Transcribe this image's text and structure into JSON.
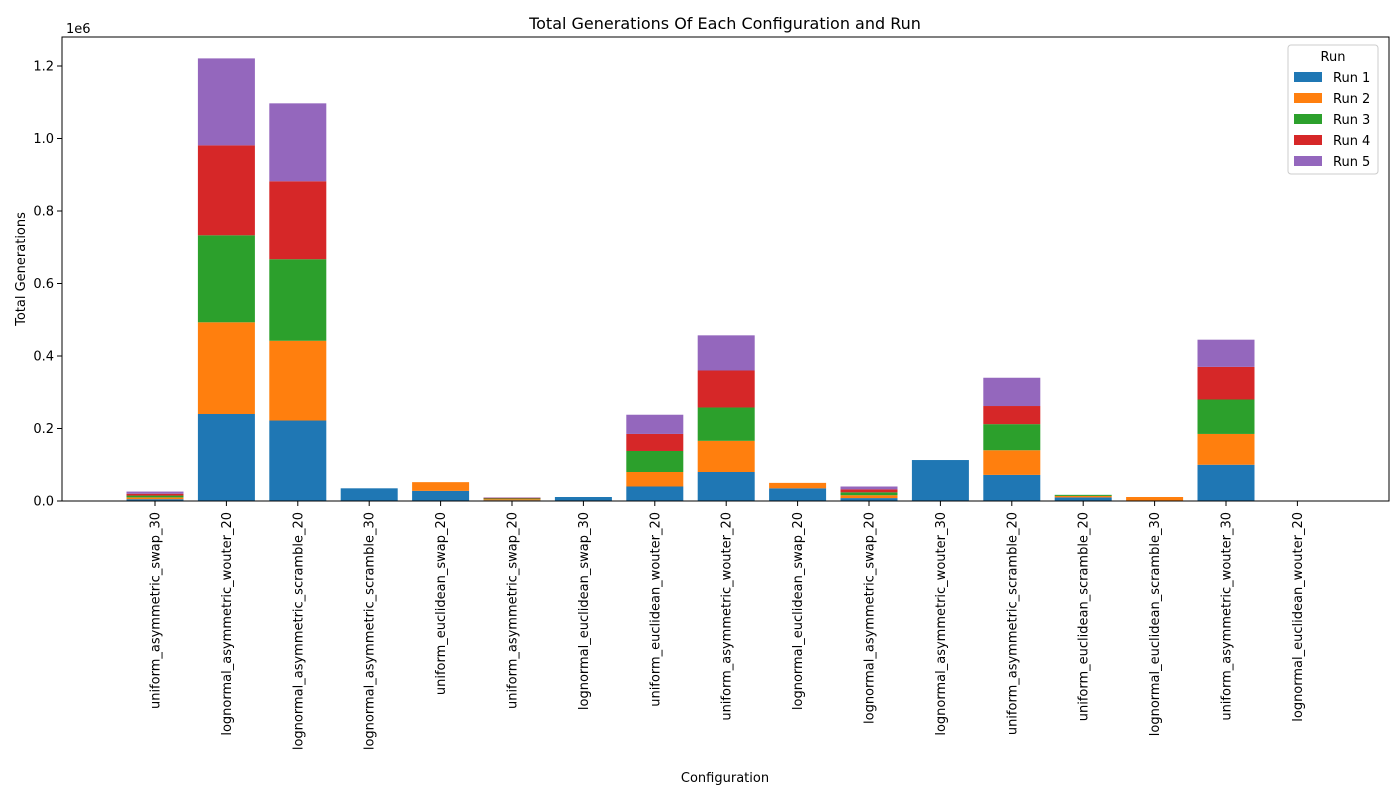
{
  "chart_data": {
    "type": "bar",
    "stacked": true,
    "title": "Total Generations Of Each Configuration and Run",
    "xlabel": "Configuration",
    "ylabel": "Total Generations",
    "y_offset_label": "1e6",
    "ylim": [
      0,
      1.28
    ],
    "y_scale": "1e6",
    "yticks": [
      0.0,
      0.2,
      0.4,
      0.6,
      0.8,
      1.0,
      1.2
    ],
    "ytick_labels": [
      "0.0",
      "0.2",
      "0.4",
      "0.6",
      "0.8",
      "1.0",
      "1.2"
    ],
    "legend": {
      "title": "Run",
      "placement": "top-right"
    },
    "categories": [
      "uniform_asymmetric_swap_30",
      "lognormal_asymmetric_wouter_20",
      "lognormal_asymmetric_scramble_20",
      "lognormal_asymmetric_scramble_30",
      "uniform_euclidean_swap_20",
      "uniform_asymmetric_swap_20",
      "lognormal_euclidean_swap_30",
      "uniform_euclidean_wouter_20",
      "uniform_asymmetric_wouter_20",
      "lognormal_euclidean_swap_20",
      "lognormal_asymmetric_swap_20",
      "lognormal_asymmetric_wouter_30",
      "uniform_asymmetric_scramble_20",
      "uniform_euclidean_scramble_20",
      "lognormal_euclidean_scramble_30",
      "uniform_asymmetric_wouter_30",
      "lognormal_euclidean_wouter_20"
    ],
    "series": [
      {
        "name": "Run 1",
        "color": "#1f77b4",
        "values": [
          0.005,
          0.24,
          0.222,
          0.035,
          0.028,
          0.002,
          0.011,
          0.04,
          0.08,
          0.035,
          0.008,
          0.113,
          0.072,
          0.01,
          0.001,
          0.1,
          0.0
        ]
      },
      {
        "name": "Run 2",
        "color": "#ff7f0e",
        "values": [
          0.005,
          0.253,
          0.22,
          0.0,
          0.024,
          0.003,
          0.0,
          0.04,
          0.086,
          0.015,
          0.008,
          0.0,
          0.068,
          0.004,
          0.01,
          0.085,
          0.0
        ]
      },
      {
        "name": "Run 3",
        "color": "#2ca02c",
        "values": [
          0.005,
          0.24,
          0.225,
          0.0,
          0.0,
          0.002,
          0.0,
          0.058,
          0.092,
          0.0,
          0.008,
          0.0,
          0.072,
          0.003,
          0.0,
          0.095,
          0.0
        ]
      },
      {
        "name": "Run 4",
        "color": "#d62728",
        "values": [
          0.005,
          0.248,
          0.215,
          0.0,
          0.0,
          0.002,
          0.0,
          0.047,
          0.102,
          0.0,
          0.008,
          0.0,
          0.05,
          0.0,
          0.0,
          0.09,
          0.0
        ]
      },
      {
        "name": "Run 5",
        "color": "#9467bd",
        "values": [
          0.006,
          0.24,
          0.215,
          0.0,
          0.0,
          0.001,
          0.0,
          0.053,
          0.097,
          0.0,
          0.008,
          0.0,
          0.078,
          0.0,
          0.0,
          0.075,
          0.0
        ]
      }
    ],
    "grid": false
  }
}
